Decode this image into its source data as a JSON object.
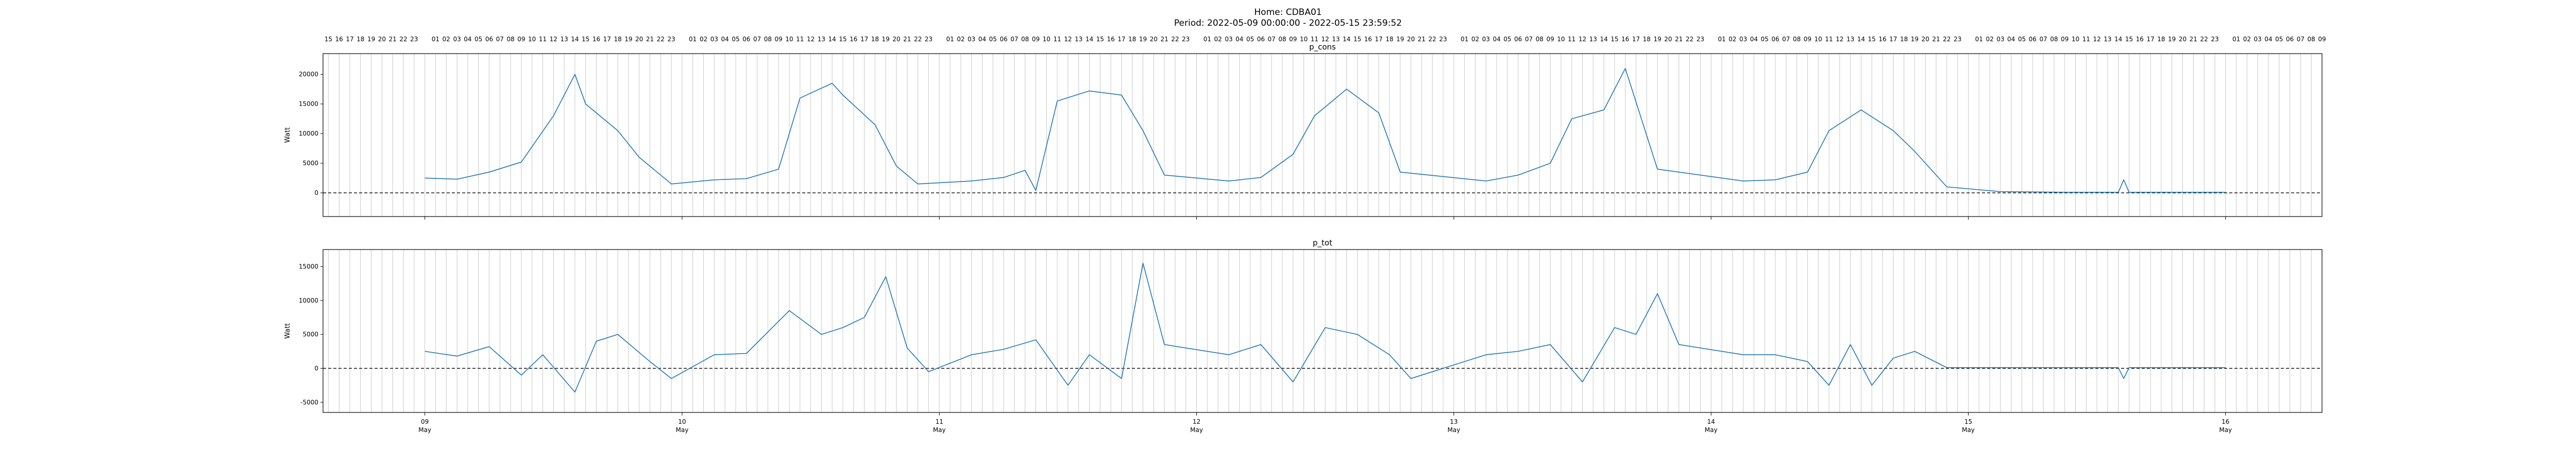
{
  "figure": {
    "title_line1": "Home: CDBA01",
    "title_line2": "Period: 2022-05-09 00:00:00 - 2022-05-15 23:59:52"
  },
  "chart_data": [
    {
      "type": "line",
      "title": "p_cons",
      "ylabel": "Watt",
      "xlim": [
        "2022-05-08 14:30",
        "2022-05-16 09:00"
      ],
      "ylim": [
        -4000,
        23500
      ],
      "yticks": [
        0,
        5000,
        10000,
        15000,
        20000
      ],
      "zero_line": "dashed",
      "grid": "vertical hourly lines",
      "color": "#1f77b4",
      "x": [
        "2022-05-09 00:00",
        "2022-05-09 03:00",
        "2022-05-09 06:00",
        "2022-05-09 09:00",
        "2022-05-09 12:00",
        "2022-05-09 14:00",
        "2022-05-09 15:00",
        "2022-05-09 18:00",
        "2022-05-09 20:00",
        "2022-05-09 23:00",
        "2022-05-10 03:00",
        "2022-05-10 06:00",
        "2022-05-10 09:00",
        "2022-05-10 11:00",
        "2022-05-10 14:00",
        "2022-05-10 15:00",
        "2022-05-10 18:00",
        "2022-05-10 20:00",
        "2022-05-10 22:00",
        "2022-05-11 03:00",
        "2022-05-11 06:00",
        "2022-05-11 08:00",
        "2022-05-11 09:00",
        "2022-05-11 11:00",
        "2022-05-11 14:00",
        "2022-05-11 17:00",
        "2022-05-11 19:00",
        "2022-05-11 21:00",
        "2022-05-12 03:00",
        "2022-05-12 06:00",
        "2022-05-12 09:00",
        "2022-05-12 11:00",
        "2022-05-12 14:00",
        "2022-05-12 17:00",
        "2022-05-12 19:00",
        "2022-05-13 03:00",
        "2022-05-13 06:00",
        "2022-05-13 09:00",
        "2022-05-13 11:00",
        "2022-05-13 14:00",
        "2022-05-13 16:00",
        "2022-05-13 19:00",
        "2022-05-14 03:00",
        "2022-05-14 06:00",
        "2022-05-14 09:00",
        "2022-05-14 11:00",
        "2022-05-14 14:00",
        "2022-05-14 17:00",
        "2022-05-14 19:00",
        "2022-05-14 22:00",
        "2022-05-15 03:00",
        "2022-05-15 09:00",
        "2022-05-15 14:00",
        "2022-05-15 14:30",
        "2022-05-15 15:00",
        "2022-05-15 20:00",
        "2022-05-15 23:59"
      ],
      "values": [
        2500,
        2300,
        3500,
        5200,
        13000,
        20000,
        15000,
        10500,
        6000,
        1500,
        2200,
        2400,
        4000,
        16000,
        18500,
        16500,
        11500,
        4500,
        1500,
        2000,
        2600,
        3800,
        400,
        15500,
        17200,
        16500,
        10500,
        3000,
        2000,
        2600,
        6500,
        13000,
        17500,
        13500,
        3500,
        2000,
        3000,
        5000,
        12500,
        14000,
        21000,
        4000,
        2000,
        2200,
        3500,
        10500,
        14000,
        10500,
        7000,
        1000,
        200,
        100,
        100,
        2200,
        100,
        100,
        100
      ]
    },
    {
      "type": "line",
      "title": "p_tot",
      "ylabel": "Watt",
      "xlim": [
        "2022-05-08 14:30",
        "2022-05-16 09:00"
      ],
      "ylim": [
        -6500,
        17500
      ],
      "yticks": [
        -5000,
        0,
        5000,
        10000,
        15000
      ],
      "zero_line": "dashed",
      "grid": "vertical hourly lines",
      "color": "#1f77b4",
      "x": [
        "2022-05-09 00:00",
        "2022-05-09 03:00",
        "2022-05-09 06:00",
        "2022-05-09 09:00",
        "2022-05-09 11:00",
        "2022-05-09 14:00",
        "2022-05-09 16:00",
        "2022-05-09 18:00",
        "2022-05-09 21:00",
        "2022-05-09 23:00",
        "2022-05-10 03:00",
        "2022-05-10 06:00",
        "2022-05-10 10:00",
        "2022-05-10 13:00",
        "2022-05-10 15:00",
        "2022-05-10 17:00",
        "2022-05-10 19:00",
        "2022-05-10 21:00",
        "2022-05-10 23:00",
        "2022-05-11 03:00",
        "2022-05-11 06:00",
        "2022-05-11 09:00",
        "2022-05-11 12:00",
        "2022-05-11 14:00",
        "2022-05-11 17:00",
        "2022-05-11 19:00",
        "2022-05-11 21:00",
        "2022-05-12 03:00",
        "2022-05-12 06:00",
        "2022-05-12 09:00",
        "2022-05-12 12:00",
        "2022-05-12 15:00",
        "2022-05-12 18:00",
        "2022-05-12 20:00",
        "2022-05-13 03:00",
        "2022-05-13 06:00",
        "2022-05-13 09:00",
        "2022-05-13 12:00",
        "2022-05-13 15:00",
        "2022-05-13 17:00",
        "2022-05-13 19:00",
        "2022-05-13 21:00",
        "2022-05-14 03:00",
        "2022-05-14 06:00",
        "2022-05-14 09:00",
        "2022-05-14 11:00",
        "2022-05-14 13:00",
        "2022-05-14 15:00",
        "2022-05-14 17:00",
        "2022-05-14 19:00",
        "2022-05-14 22:00",
        "2022-05-15 03:00",
        "2022-05-15 09:00",
        "2022-05-15 14:00",
        "2022-05-15 14:30",
        "2022-05-15 15:00",
        "2022-05-15 20:00",
        "2022-05-15 23:59"
      ],
      "values": [
        2500,
        1800,
        3200,
        -1000,
        2000,
        -3500,
        4000,
        5000,
        1000,
        -1500,
        2000,
        2200,
        8500,
        5000,
        6000,
        7500,
        13500,
        3000,
        -500,
        2000,
        2800,
        4200,
        -2500,
        2000,
        -1500,
        15500,
        3500,
        2000,
        3500,
        -2000,
        6000,
        5000,
        2000,
        -1500,
        2000,
        2500,
        3500,
        -2000,
        6000,
        5000,
        11000,
        3500,
        2000,
        2000,
        1000,
        -2500,
        3500,
        -2500,
        1500,
        2500,
        100,
        100,
        100,
        100,
        -1500,
        100,
        100,
        100
      ]
    }
  ],
  "hour_ticks": [
    "16",
    "17",
    "18",
    "19",
    "20",
    "21",
    "22",
    "23",
    "",
    "01",
    "02",
    "03",
    "04",
    "05",
    "06",
    "07",
    "08",
    "09",
    "10",
    "11",
    "12",
    "13",
    "14",
    "15",
    "16",
    "17",
    "18",
    "19",
    "20",
    "21",
    "22",
    "23"
  ],
  "day_ticks": [
    {
      "day": "09",
      "month": "May",
      "date": "2022-05-09"
    },
    {
      "day": "10",
      "month": "May",
      "date": "2022-05-10"
    },
    {
      "day": "11",
      "month": "May",
      "date": "2022-05-11"
    },
    {
      "day": "12",
      "month": "May",
      "date": "2022-05-12"
    },
    {
      "day": "13",
      "month": "May",
      "date": "2022-05-13"
    },
    {
      "day": "14",
      "month": "May",
      "date": "2022-05-14"
    },
    {
      "day": "15",
      "month": "May",
      "date": "2022-05-15"
    },
    {
      "day": "16",
      "month": "May",
      "date": "2022-05-16"
    }
  ]
}
